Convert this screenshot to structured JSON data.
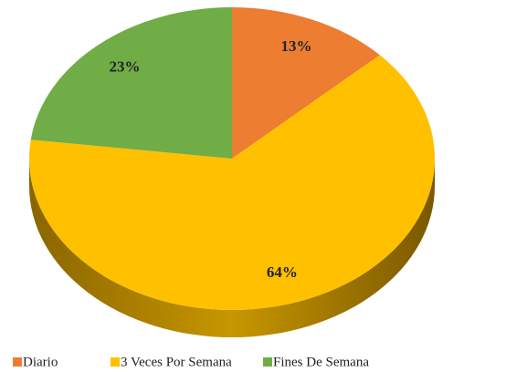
{
  "chart_data": {
    "type": "pie",
    "categories": [
      "Diario",
      "3 Veces Por Semana",
      "Fines De Semana"
    ],
    "values": [
      13,
      64,
      23
    ],
    "value_labels": [
      "13%",
      "64%",
      "23%"
    ],
    "colors": [
      "#ED7D31",
      "#FFC000",
      "#70AD47"
    ],
    "legend": "bottom"
  }
}
